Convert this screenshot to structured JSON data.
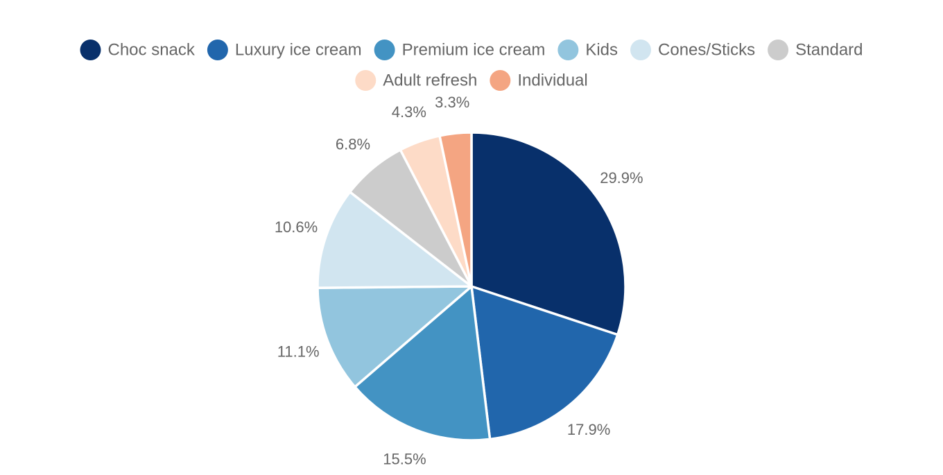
{
  "chart_data": {
    "type": "pie",
    "legend_position": "top",
    "categories": [
      "Choc snack",
      "Luxury ice cream",
      "Premium ice cream",
      "Kids",
      "Cones/Sticks",
      "Standard",
      "Adult refresh",
      "Individual"
    ],
    "values": [
      29.9,
      17.9,
      15.5,
      11.1,
      10.6,
      6.8,
      4.3,
      3.3
    ],
    "labels": [
      "29.9%",
      "17.9%",
      "15.5%",
      "11.1%",
      "10.6%",
      "6.8%",
      "4.3%",
      "3.3%"
    ],
    "colors": [
      "#08306b",
      "#2166ac",
      "#4393c3",
      "#92c5de",
      "#d1e5f0",
      "#cccccc",
      "#fddbc7",
      "#f4a582"
    ]
  }
}
